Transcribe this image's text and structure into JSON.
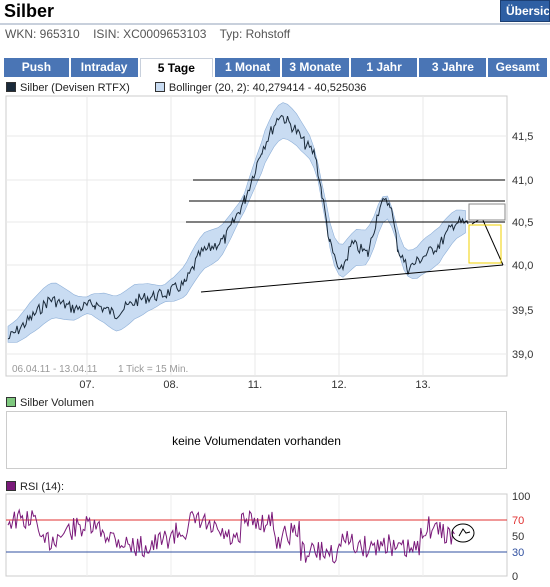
{
  "header": {
    "title": "Silber",
    "overview_label": "Übersicht",
    "wkn": "WKN: 965310",
    "isin": "ISIN: XC0009653103",
    "typ": "Typ: Rohstoff"
  },
  "tabs": [
    {
      "label": "Push",
      "active": false
    },
    {
      "label": "Intraday",
      "active": false
    },
    {
      "label": "5 Tage",
      "active": true
    },
    {
      "label": "1 Monat",
      "active": false
    },
    {
      "label": "3 Monate",
      "active": false
    },
    {
      "label": "1 Jahr",
      "active": false
    },
    {
      "label": "3 Jahre",
      "active": false
    },
    {
      "label": "Gesamt",
      "active": false
    }
  ],
  "colors": {
    "accent": "#4a75b5",
    "price": "#1a2a3a",
    "band": "#c9dcf2",
    "rsi": "#7a1a7a",
    "rsi_high": "#e03030",
    "rsi_low": "#3050a0"
  },
  "price_chart": {
    "legend_price": "Silber (Devisen RTFX)",
    "legend_bollinger": "Bollinger (20, 2): 40,279414 - 40,525036",
    "range_label": "06.04.11 - 13.04.11",
    "tick_label": "1 Tick = 15 Min.",
    "y_ticks": [
      "41,5",
      "41,0",
      "40,5",
      "40,0",
      "39,5",
      "39,0"
    ],
    "x_ticks": [
      "07.",
      "08.",
      "11.",
      "12.",
      "13."
    ]
  },
  "volume": {
    "legend": "Silber Volumen",
    "message": "keine Volumendaten vorhanden"
  },
  "rsi": {
    "legend": "RSI (14):",
    "y_ticks": [
      "100",
      "70",
      "50",
      "30",
      "0"
    ]
  }
}
